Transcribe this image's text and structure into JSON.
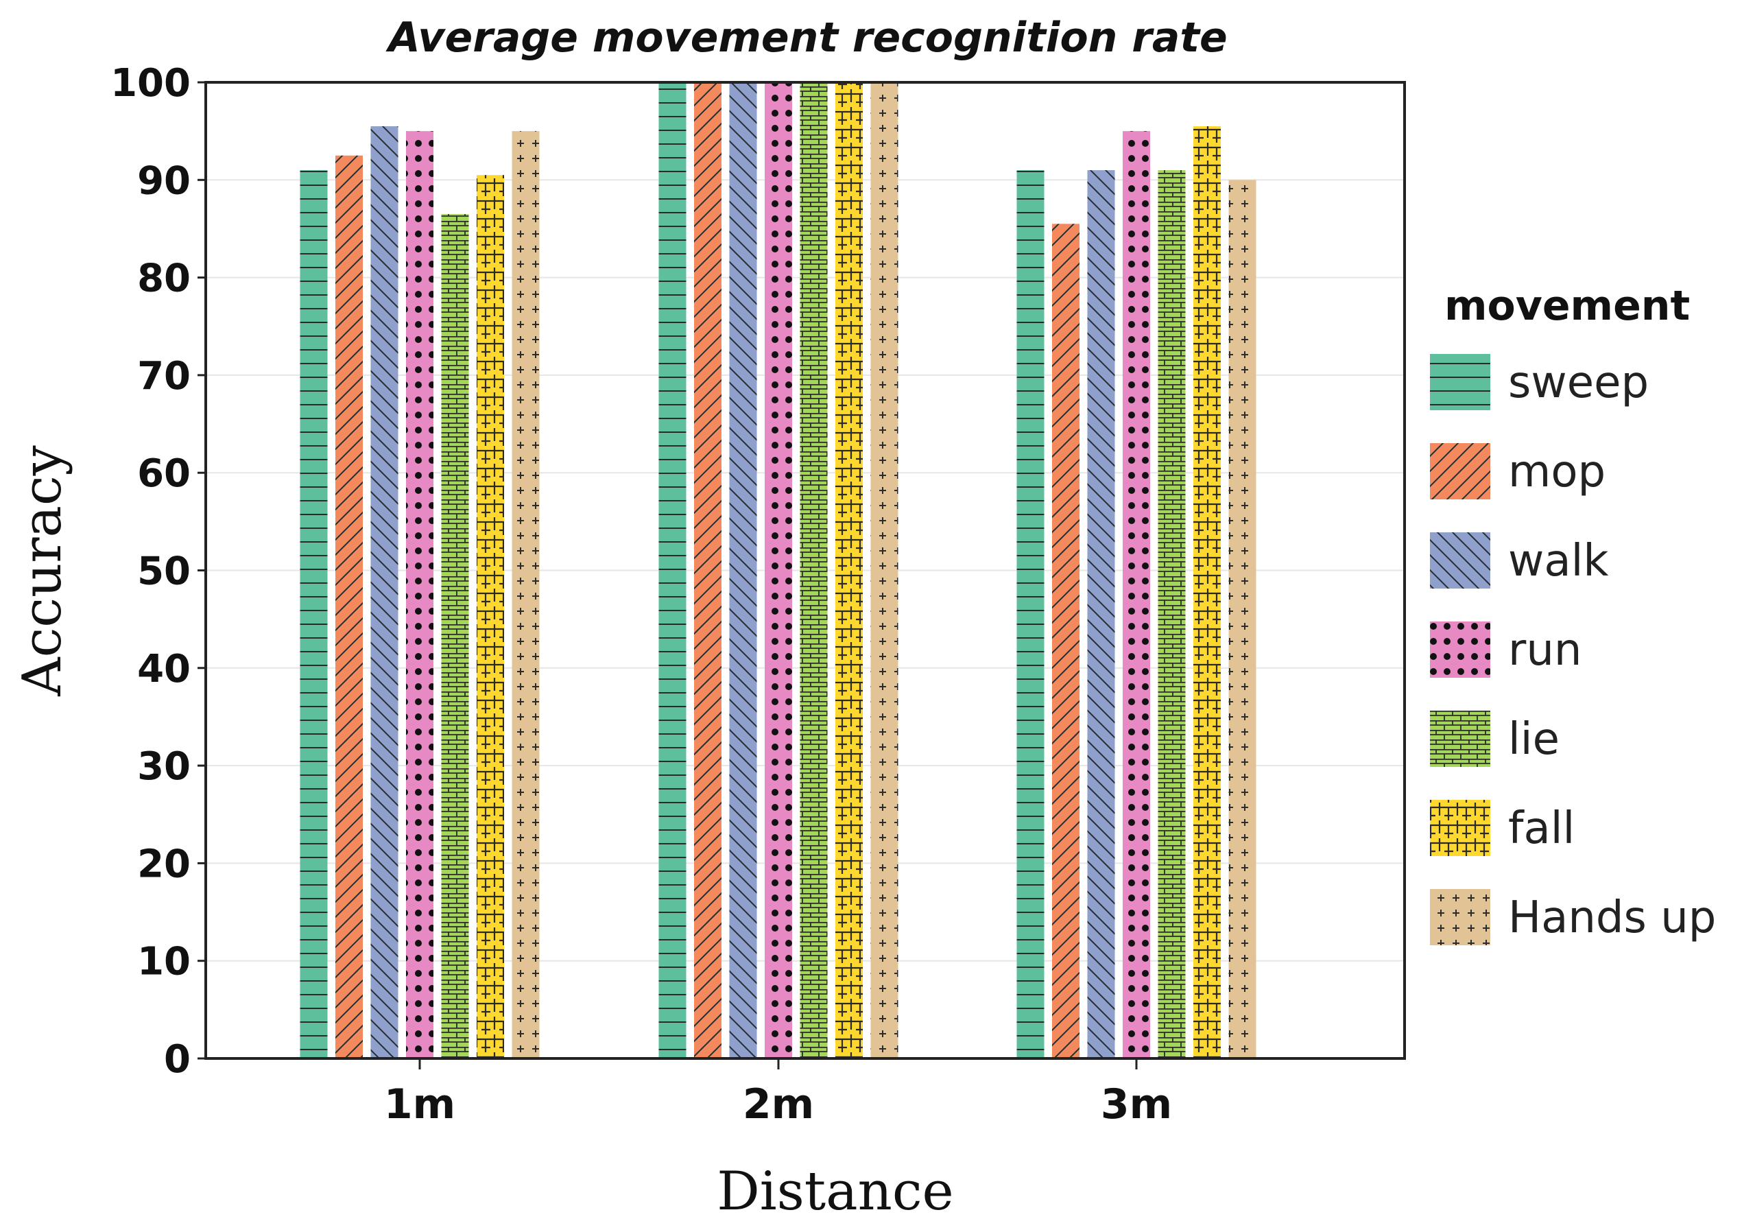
{
  "chart_data": {
    "type": "bar",
    "title": "Average movement recognition rate",
    "xlabel": "Distance",
    "ylabel": "Accuracy",
    "ylim": [
      0,
      100
    ],
    "yticks": [
      0,
      10,
      20,
      30,
      40,
      50,
      60,
      70,
      80,
      90,
      100
    ],
    "grid": true,
    "legend_title": "movement",
    "legend_position": "right",
    "categories": [
      "1m",
      "2m",
      "3m"
    ],
    "series": [
      {
        "name": "sweep",
        "values": [
          91,
          100,
          91
        ],
        "color": "#5dbf9c",
        "pattern": "hlines"
      },
      {
        "name": "mop",
        "values": [
          92.5,
          100,
          85.5
        ],
        "color": "#f4895d",
        "pattern": "diag-right"
      },
      {
        "name": "walk",
        "values": [
          95.5,
          100,
          91
        ],
        "color": "#8ea0cb",
        "pattern": "diag-left"
      },
      {
        "name": "run",
        "values": [
          95,
          100,
          95
        ],
        "color": "#e78ac3",
        "pattern": "dots"
      },
      {
        "name": "lie",
        "values": [
          86.5,
          100,
          91
        ],
        "color": "#a4d65a",
        "pattern": "brick"
      },
      {
        "name": "fall",
        "values": [
          90.5,
          100,
          95.5
        ],
        "color": "#ffd82f",
        "pattern": "weave"
      },
      {
        "name": "Hands up",
        "values": [
          95,
          100,
          90
        ],
        "color": "#e2c396",
        "pattern": "plus"
      }
    ]
  }
}
